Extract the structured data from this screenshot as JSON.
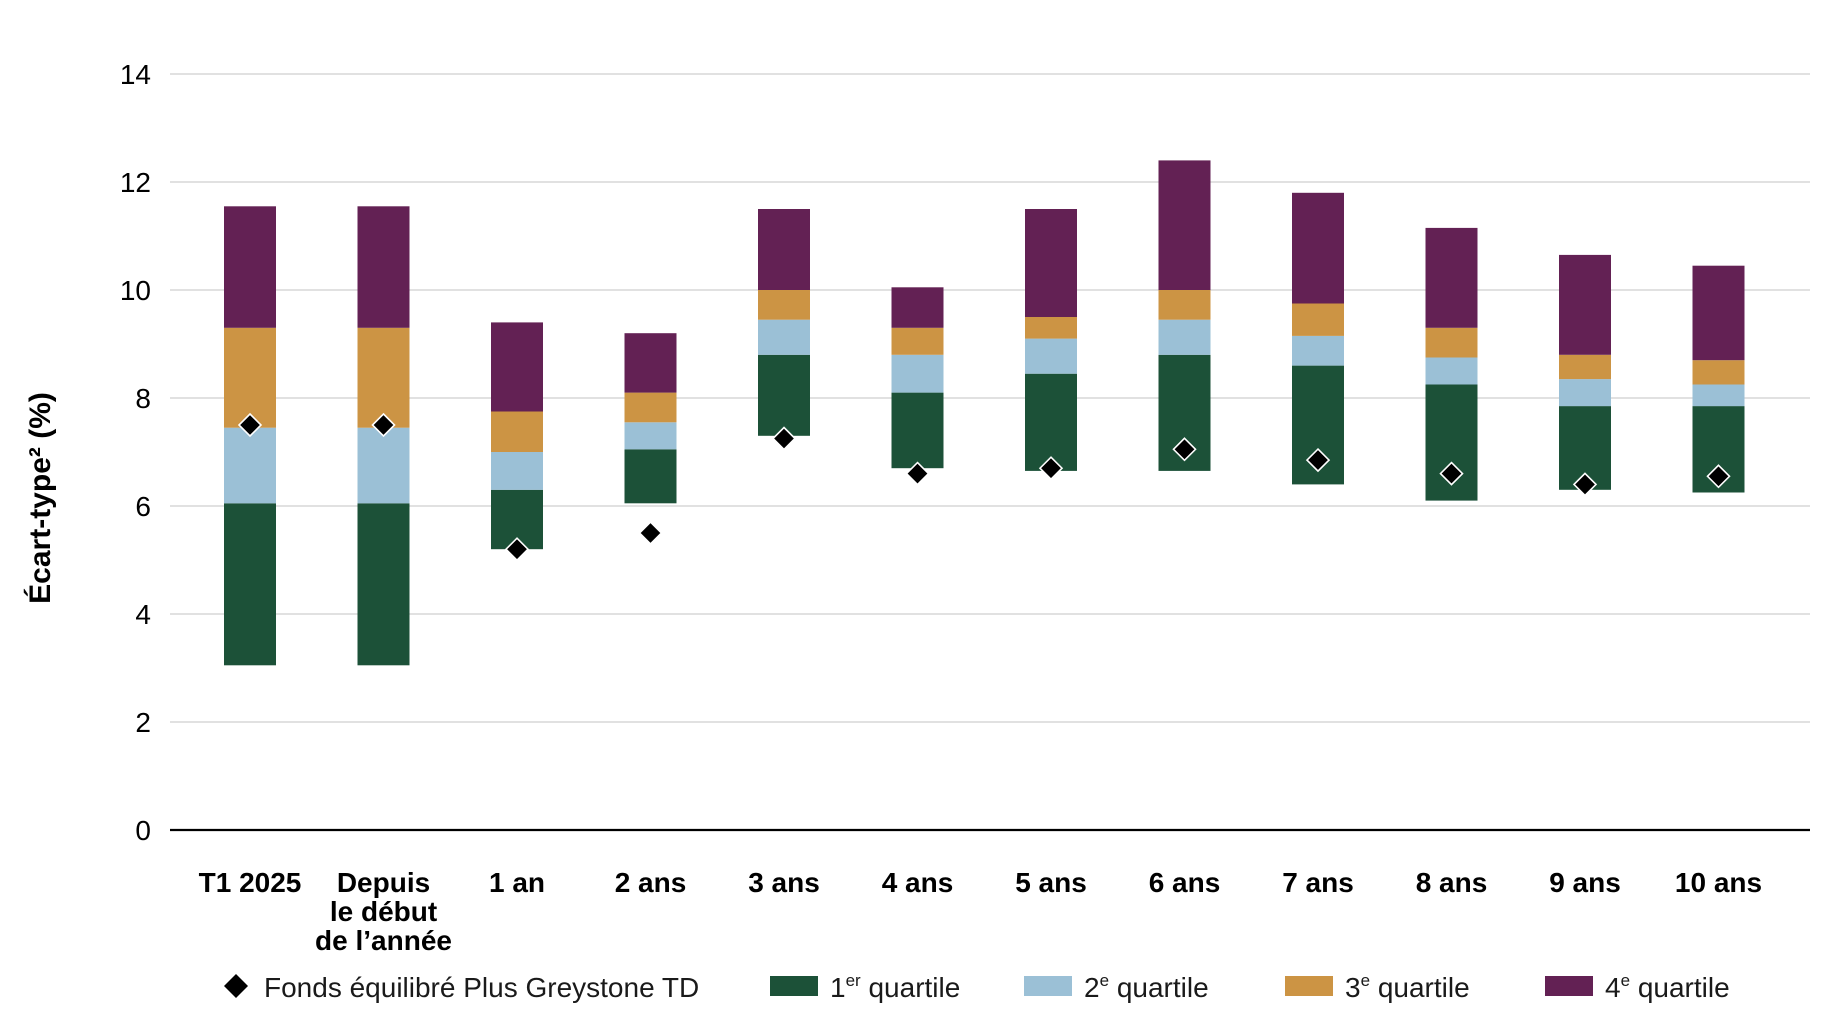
{
  "chart_data": {
    "type": "bar",
    "stacked": true,
    "floating": true,
    "ylabel": "Écart-type² (%)",
    "ylim": [
      0,
      14
    ],
    "yticks": [
      "0",
      "2",
      "4",
      "6",
      "8",
      "10",
      "12",
      "14"
    ],
    "grid": true,
    "legend_position": "bottom",
    "categories": [
      [
        "T1 2025"
      ],
      [
        "Depuis",
        "le début",
        "de l’année"
      ],
      [
        "1 an"
      ],
      [
        "2 ans"
      ],
      [
        "3 ans"
      ],
      [
        "4 ans"
      ],
      [
        "5 ans"
      ],
      [
        "6 ans"
      ],
      [
        "7 ans"
      ],
      [
        "8 ans"
      ],
      [
        "9 ans"
      ],
      [
        "10 ans"
      ]
    ],
    "series": [
      {
        "name": "1er quartile",
        "color": "#1c5138",
        "low": [
          3.05,
          3.05,
          5.2,
          6.05,
          7.3,
          6.7,
          6.65,
          6.65,
          6.4,
          6.1,
          6.3,
          6.25
        ],
        "high": [
          6.05,
          6.05,
          6.3,
          7.05,
          8.8,
          8.1,
          8.45,
          8.8,
          8.6,
          8.25,
          7.85,
          7.85
        ]
      },
      {
        "name": "2e quartile",
        "color": "#9bc0d6",
        "low": [
          6.05,
          6.05,
          6.3,
          7.05,
          8.8,
          8.1,
          8.45,
          8.8,
          8.6,
          8.25,
          7.85,
          7.85
        ],
        "high": [
          7.45,
          7.45,
          7.0,
          7.55,
          9.45,
          8.8,
          9.1,
          9.45,
          9.15,
          8.75,
          8.35,
          8.25
        ]
      },
      {
        "name": "3e quartile",
        "color": "#cc9444",
        "low": [
          7.45,
          7.45,
          7.0,
          7.55,
          9.45,
          8.8,
          9.1,
          9.45,
          9.15,
          8.75,
          8.35,
          8.25
        ],
        "high": [
          9.3,
          9.3,
          7.75,
          8.1,
          10.0,
          9.3,
          9.5,
          10.0,
          9.75,
          9.3,
          8.8,
          8.7
        ]
      },
      {
        "name": "4e quartile",
        "color": "#632154",
        "low": [
          9.3,
          9.3,
          7.75,
          8.1,
          10.0,
          9.3,
          9.5,
          10.0,
          9.75,
          9.3,
          8.8,
          8.7
        ],
        "high": [
          11.55,
          11.55,
          9.4,
          9.2,
          11.5,
          10.05,
          11.5,
          12.4,
          11.8,
          11.15,
          10.65,
          10.45
        ]
      }
    ],
    "fund": {
      "name": "Fonds équilibré Plus Greystone TD",
      "values": [
        7.5,
        7.5,
        5.2,
        5.5,
        7.25,
        6.6,
        6.7,
        7.05,
        6.85,
        6.6,
        6.4,
        6.55
      ]
    },
    "legend": [
      {
        "marker": "diamond",
        "label": "Fonds équilibré Plus Greystone TD",
        "sup": ""
      },
      {
        "marker": "square",
        "color": "#1c5138",
        "label_pre": "1",
        "sup": "er",
        "label_post": " quartile"
      },
      {
        "marker": "square",
        "color": "#9bc0d6",
        "label_pre": "2",
        "sup": "e",
        "label_post": " quartile"
      },
      {
        "marker": "square",
        "color": "#cc9444",
        "label_pre": "3",
        "sup": "e",
        "label_post": " quartile"
      },
      {
        "marker": "square",
        "color": "#632154",
        "label_pre": "4",
        "sup": "e",
        "label_post": " quartile"
      }
    ]
  }
}
